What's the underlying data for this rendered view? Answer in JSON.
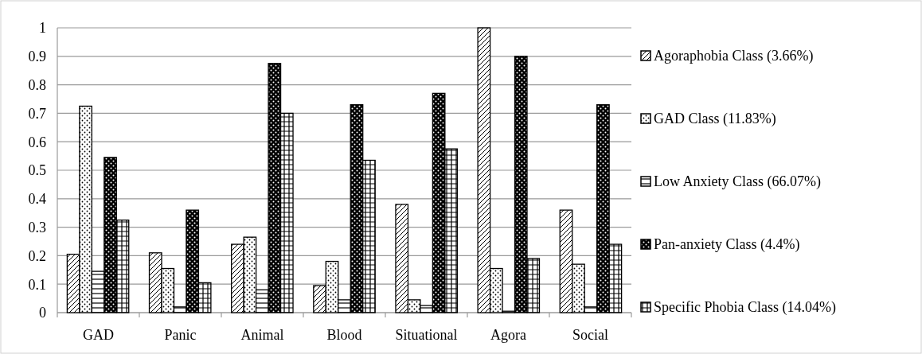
{
  "chart_data": {
    "type": "bar",
    "categories": [
      "GAD",
      "Panic",
      "Animal",
      "Blood",
      "Situational",
      "Agora",
      "Social"
    ],
    "series": [
      {
        "name": "Agoraphobia Class (3.66%)",
        "color": "#000000",
        "values": [
          0.205,
          0.21,
          0.24,
          0.095,
          0.38,
          1.0,
          0.36
        ]
      },
      {
        "name": "GAD Class (11.83%)",
        "color": "#000000",
        "values": [
          0.725,
          0.155,
          0.265,
          0.18,
          0.045,
          0.155,
          0.17
        ]
      },
      {
        "name": "Low Anxiety Class (66.07%)",
        "color": "#000000",
        "values": [
          0.145,
          0.02,
          0.08,
          0.045,
          0.025,
          0.005,
          0.02
        ]
      },
      {
        "name": "Pan-anxiety Class (4.4%)",
        "color": "#000000",
        "values": [
          0.545,
          0.36,
          0.875,
          0.73,
          0.77,
          0.9,
          0.73
        ]
      },
      {
        "name": "Specific Phobia Class (14.04%)",
        "color": "#000000",
        "values": [
          0.325,
          0.105,
          0.7,
          0.535,
          0.575,
          0.19,
          0.24
        ]
      }
    ],
    "ylim": [
      0,
      1
    ],
    "yticks": [
      0,
      0.1,
      0.2,
      0.3,
      0.4,
      0.5,
      0.6,
      0.7,
      0.8,
      0.9,
      1
    ],
    "grid": "y",
    "legend": "right"
  }
}
